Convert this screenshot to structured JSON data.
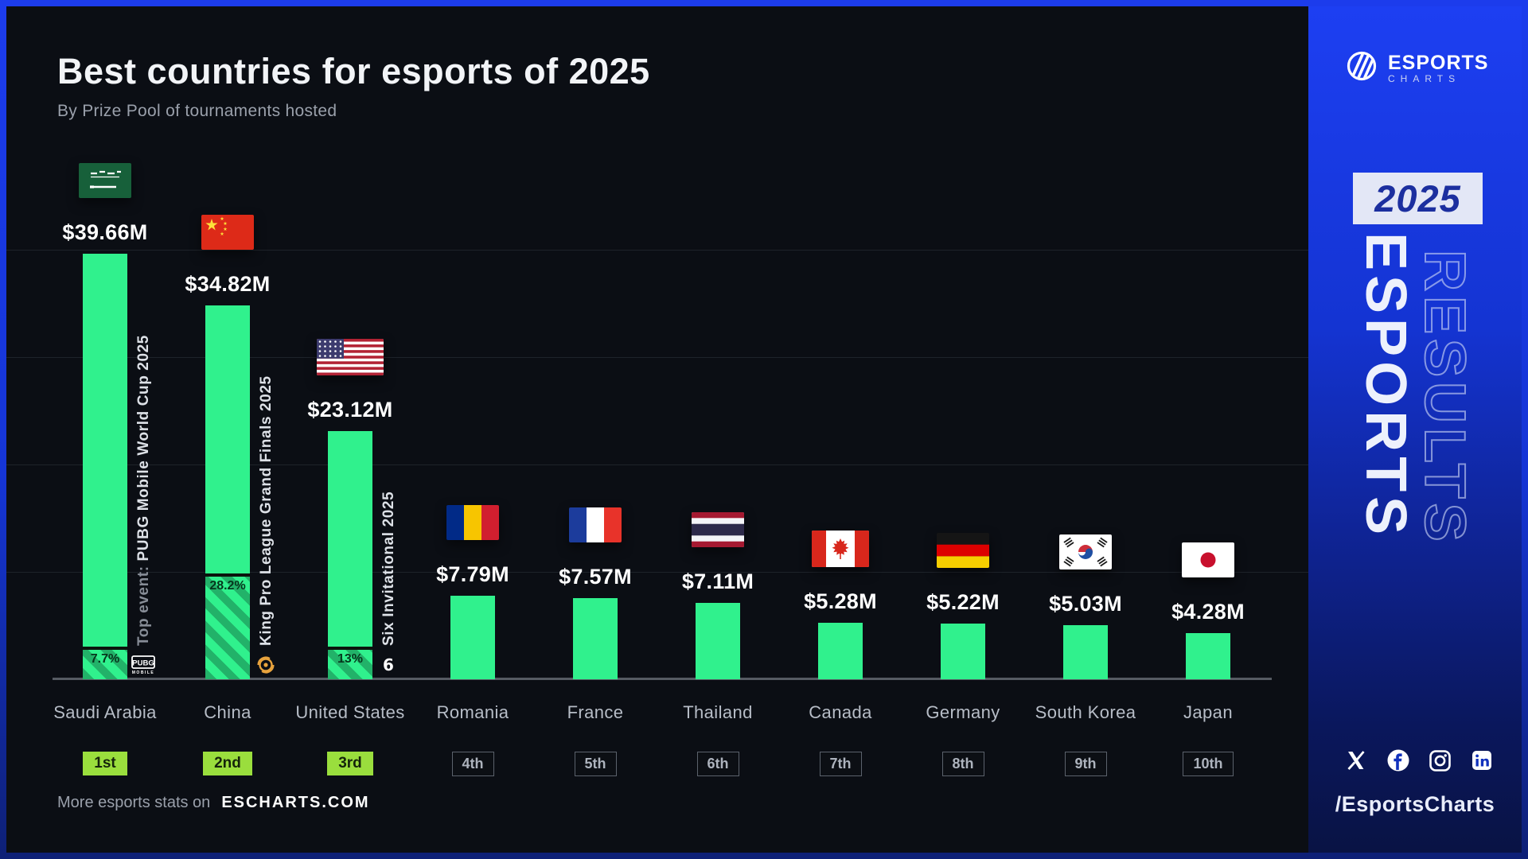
{
  "header": {
    "title": "Best countries for esports of 2025",
    "subtitle": "By Prize Pool of tournaments hosted"
  },
  "chart_data": {
    "type": "bar",
    "title": "Best countries for esports of 2025",
    "subtitle": "By Prize Pool of tournaments hosted",
    "unit": "USD millions",
    "ylabel": "Prize Pool of tournaments hosted",
    "ylim": [
      0,
      42
    ],
    "gridline_values": [
      10,
      20,
      30,
      40
    ],
    "grid": true,
    "categories": [
      "Saudi Arabia",
      "China",
      "United States",
      "Romania",
      "France",
      "Thailand",
      "Canada",
      "Germany",
      "South Korea",
      "Japan"
    ],
    "values": [
      39.66,
      34.82,
      23.12,
      7.79,
      7.57,
      7.11,
      5.28,
      5.22,
      5.03,
      4.28
    ],
    "value_labels": [
      "$39.66M",
      "$34.82M",
      "$23.12M",
      "$7.79M",
      "$7.57M",
      "$7.11M",
      "$5.28M",
      "$5.22M",
      "$5.03M",
      "$4.28M"
    ],
    "ranks": [
      "1st",
      "2nd",
      "3rd",
      "4th",
      "5th",
      "6th",
      "7th",
      "8th",
      "9th",
      "10th"
    ],
    "rank_styles": [
      "green",
      "green",
      "green",
      "outline",
      "outline",
      "outline",
      "outline",
      "outline",
      "outline",
      "outline"
    ],
    "flags": [
      "saudi-arabia",
      "china",
      "united-states",
      "romania",
      "france",
      "thailand",
      "canada",
      "germany",
      "south-korea",
      "japan"
    ],
    "top_events": [
      {
        "country_index": 0,
        "prefix": "Top event: ",
        "name": "PUBG Mobile World Cup 2025",
        "share_pct": 7.7,
        "share_label": "7.7%",
        "logo": "pubg-mobile-logo"
      },
      {
        "country_index": 1,
        "prefix": "",
        "name": "King Pro League Grand Finals 2025",
        "share_pct": 28.2,
        "share_label": "28.2%",
        "logo": "king-pro-league-logo"
      },
      {
        "country_index": 2,
        "prefix": "",
        "name": "Six Invitational 2025",
        "share_pct": 13,
        "share_label": "13%",
        "logo": "six-invitational-logo"
      }
    ]
  },
  "footer": {
    "text": "More esports stats on",
    "brand": "ESCHARTS.COM"
  },
  "sidebar": {
    "logo_title": "ESPORTS",
    "logo_subtitle": "CHARTS",
    "year_badge": "2025",
    "vertical_solid": "ESPORTS",
    "vertical_outline": "RESULTS",
    "social_icons": [
      "x-icon",
      "facebook-icon",
      "instagram-icon",
      "linkedin-icon"
    ],
    "handle": "/EsportsCharts"
  },
  "colors": {
    "bar_green": "#30f18d",
    "hatch_dark_green": "#22b269",
    "rank_badge_green": "#9ade3d",
    "panel_background": "#0b0e14",
    "sidebar_blue": "#1535d6",
    "kpl_gold": "#e8a33d"
  }
}
